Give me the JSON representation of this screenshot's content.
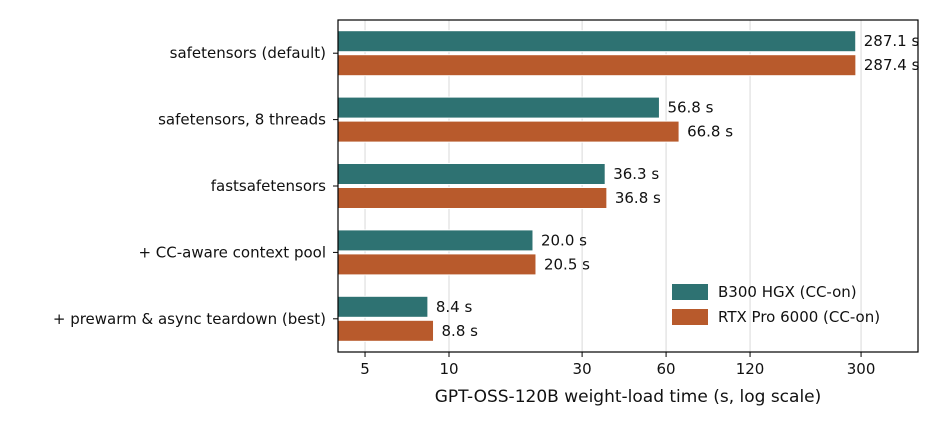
{
  "chart_data": {
    "type": "bar",
    "orientation": "horizontal",
    "title": "",
    "xlabel": "GPT-OSS-120B weight-load time (s, log scale)",
    "ylabel": "",
    "x_scale": "log",
    "xlim": [
      4,
      480
    ],
    "xticks": [
      5,
      10,
      30,
      60,
      120,
      300
    ],
    "grid": "vertical",
    "legend": "lower-right",
    "value_format": "{v} s",
    "categories": [
      "safetensors (default)",
      "safetensors, 8 threads",
      "fastsafetensors",
      "+ CC-aware context pool",
      "+ prewarm & async teardown (best)"
    ],
    "series": [
      {
        "name": "B300 HGX (CC-on)",
        "color": "#2e7272",
        "values": [
          287.1,
          56.8,
          36.3,
          20.0,
          8.4
        ]
      },
      {
        "name": "RTX Pro 6000 (CC-on)",
        "color": "#b85a2c",
        "values": [
          287.4,
          66.8,
          36.8,
          20.5,
          8.8
        ]
      }
    ]
  }
}
